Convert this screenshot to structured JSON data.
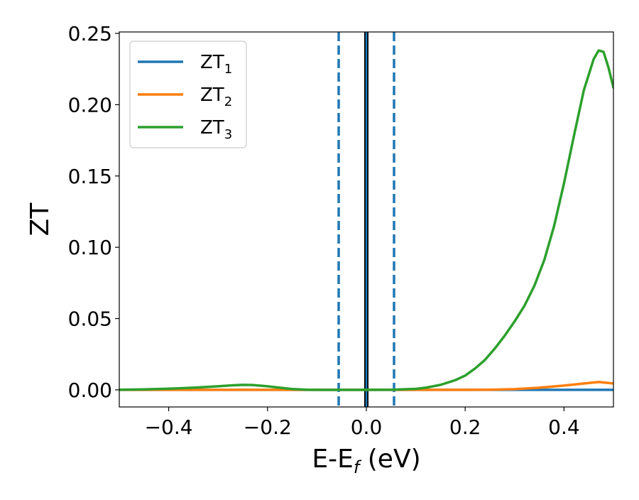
{
  "chart_data": {
    "type": "line",
    "title": "",
    "xlabel": "E-Ef (eV)",
    "xlabel_main": "E-E",
    "xlabel_sub": "f",
    "xlabel_unit": " (eV)",
    "ylabel": "ZT",
    "xlim": [
      -0.5,
      0.5
    ],
    "ylim": [
      -0.012,
      0.251
    ],
    "xticks": [
      -0.4,
      -0.2,
      0.0,
      0.2,
      0.4
    ],
    "xtick_labels": [
      "−0.4",
      "−0.2",
      "0.0",
      "0.2",
      "0.4"
    ],
    "yticks": [
      0.0,
      0.05,
      0.1,
      0.15,
      0.2,
      0.25
    ],
    "ytick_labels": [
      "0.00",
      "0.05",
      "0.10",
      "0.15",
      "0.20",
      "0.25"
    ],
    "grid": false,
    "legend_position": "upper-left",
    "series": [
      {
        "name": "ZT1",
        "label_main": "ZT",
        "label_sub": "1",
        "color": "#1f77b4",
        "x": [
          -0.5,
          -0.3,
          -0.1,
          0.0,
          0.1,
          0.3,
          0.5
        ],
        "y": [
          0,
          0,
          0,
          0,
          0,
          0,
          0
        ]
      },
      {
        "name": "ZT2",
        "label_main": "ZT",
        "label_sub": "2",
        "color": "#ff7f0e",
        "x": [
          -0.5,
          -0.3,
          -0.1,
          0.0,
          0.1,
          0.2,
          0.25,
          0.3,
          0.35,
          0.4,
          0.45,
          0.47,
          0.5
        ],
        "y": [
          0,
          0,
          0,
          0,
          0,
          0,
          0.0001,
          0.0005,
          0.0015,
          0.003,
          0.0048,
          0.0055,
          0.0045
        ]
      },
      {
        "name": "ZT3",
        "label_main": "ZT",
        "label_sub": "3",
        "color": "#2ca02c",
        "x": [
          -0.5,
          -0.45,
          -0.4,
          -0.35,
          -0.3,
          -0.27,
          -0.25,
          -0.23,
          -0.2,
          -0.17,
          -0.15,
          -0.12,
          -0.1,
          -0.05,
          0.0,
          0.05,
          0.1,
          0.12,
          0.15,
          0.18,
          0.2,
          0.22,
          0.24,
          0.26,
          0.28,
          0.3,
          0.32,
          0.34,
          0.36,
          0.38,
          0.4,
          0.42,
          0.44,
          0.46,
          0.47,
          0.48,
          0.49,
          0.5
        ],
        "y": [
          0.0001,
          0.0003,
          0.0008,
          0.0015,
          0.0025,
          0.0032,
          0.0035,
          0.0034,
          0.0025,
          0.0013,
          0.0006,
          0.0001,
          0,
          0,
          0,
          0.0001,
          0.0007,
          0.0015,
          0.0035,
          0.0068,
          0.01,
          0.015,
          0.021,
          0.029,
          0.038,
          0.048,
          0.059,
          0.073,
          0.091,
          0.115,
          0.145,
          0.178,
          0.21,
          0.232,
          0.238,
          0.237,
          0.226,
          0.212
        ]
      }
    ],
    "reference_lines": [
      {
        "x": -0.056,
        "color": "#1f77b4",
        "style": "dashed"
      },
      {
        "x": 0.056,
        "color": "#1f77b4",
        "style": "dashed"
      },
      {
        "x": 0.0,
        "color": "#000000",
        "style": "solid"
      },
      {
        "x": 0.0,
        "color": "#1f77b4",
        "style": "solid"
      }
    ]
  }
}
